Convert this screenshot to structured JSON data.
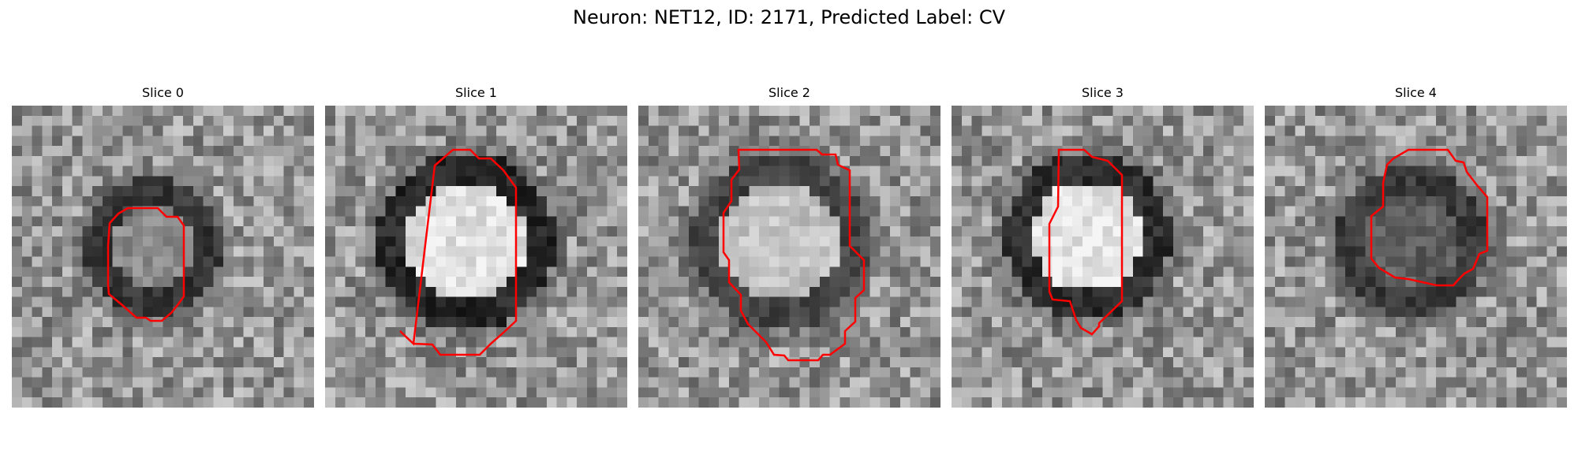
{
  "figure": {
    "title": "Neuron: NET12, ID: 2171, Predicted Label: CV"
  },
  "panels": [
    {
      "title": "Slice 0",
      "outline_color": "#ff0000"
    },
    {
      "title": "Slice 1",
      "outline_color": "#ff0000"
    },
    {
      "title": "Slice 2",
      "outline_color": "#ff0000"
    },
    {
      "title": "Slice 3",
      "outline_color": "#ff0000"
    },
    {
      "title": "Slice 4",
      "outline_color": "#ff0000"
    }
  ],
  "colormap": "gray"
}
